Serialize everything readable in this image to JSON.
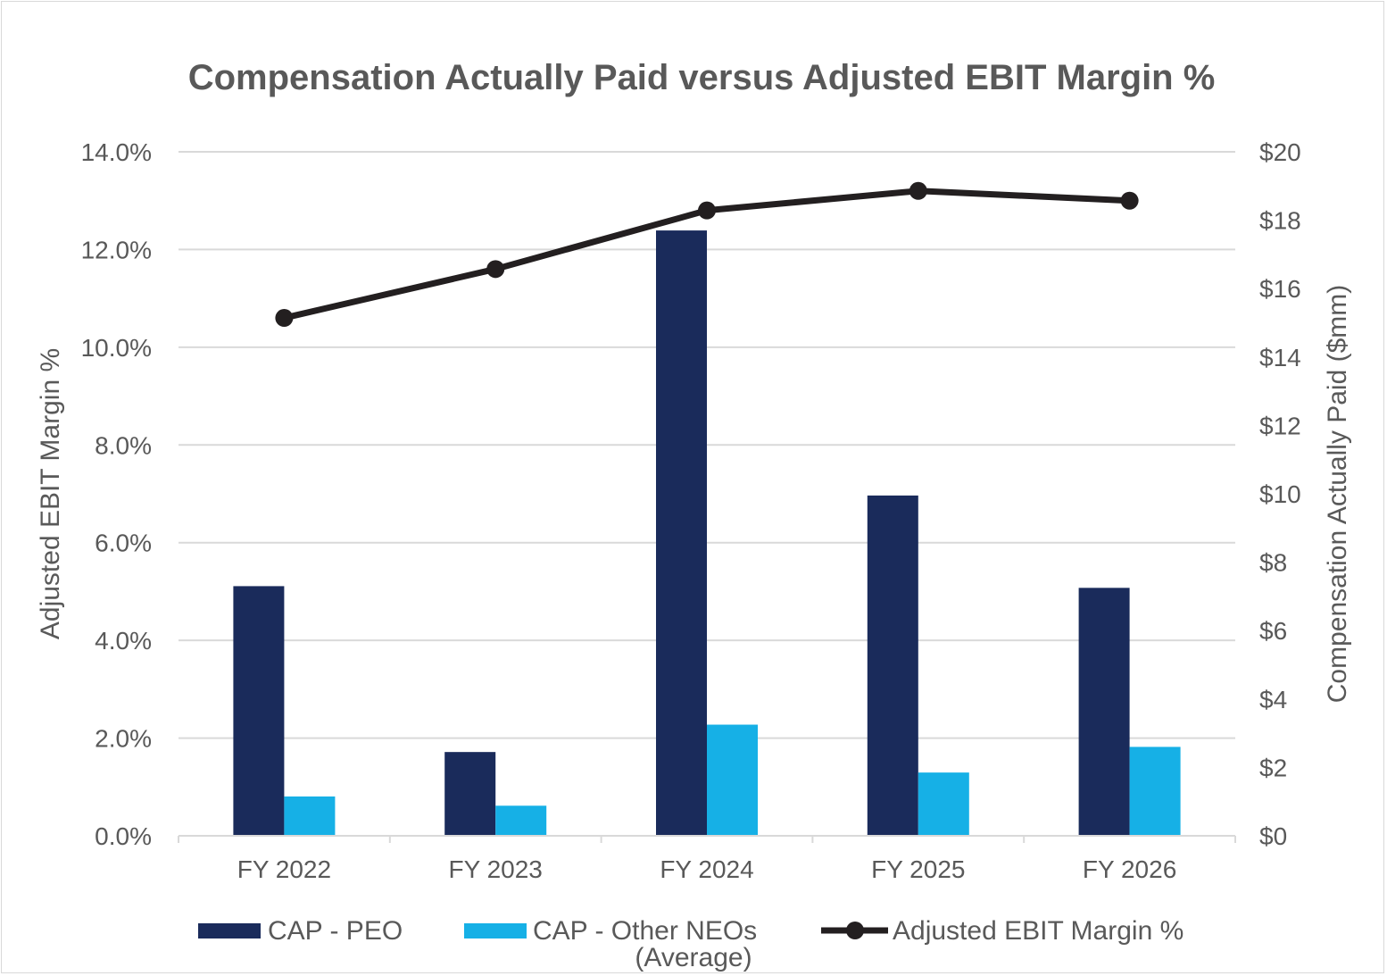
{
  "chart_data": {
    "type": "bar",
    "title": "Compensation Actually Paid versus Adjusted EBIT Margin %",
    "categories": [
      "FY 2022",
      "FY 2023",
      "FY 2024",
      "FY 2025",
      "FY 2026"
    ],
    "y_left": {
      "label": "Adjusted EBIT Margin %",
      "range": [
        0,
        14
      ],
      "ticks": [
        "0.0%",
        "2.0%",
        "4.0%",
        "6.0%",
        "8.0%",
        "10.0%",
        "12.0%",
        "14.0%"
      ]
    },
    "y_right": {
      "label": "Compensation Actually Paid ($mm)",
      "range": [
        0,
        20
      ],
      "ticks": [
        "$0",
        "$2",
        "$4",
        "$6",
        "$8",
        "$10",
        "$12",
        "$14",
        "$16",
        "$18",
        "$20"
      ]
    },
    "series": [
      {
        "name": "CAP - PEO",
        "type": "bar",
        "axis": "right",
        "color": "#1a2b5b",
        "values": [
          7.3,
          2.45,
          17.7,
          9.95,
          7.25
        ]
      },
      {
        "name": "CAP - Other NEOs (Average)",
        "name_lines": [
          "CAP - Other NEOs",
          "(Average)"
        ],
        "type": "bar",
        "axis": "right",
        "color": "#16b0e6",
        "values": [
          1.15,
          0.88,
          3.25,
          1.85,
          2.6
        ]
      },
      {
        "name": "Adjusted EBIT Margin %",
        "type": "line",
        "axis": "left",
        "color": "#231f20",
        "values": [
          10.6,
          11.6,
          12.8,
          13.2,
          13.0
        ]
      }
    ],
    "grid": true,
    "legend": "bottom"
  }
}
